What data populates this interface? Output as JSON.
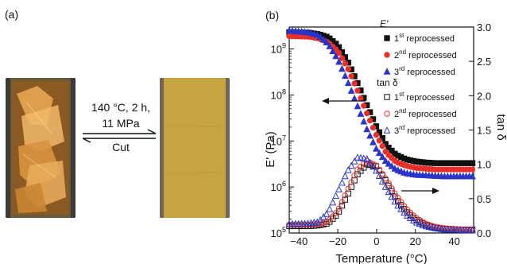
{
  "panel_a": {
    "label": "(a)",
    "conditions_line1": "140 °C, 2 h,",
    "conditions_line2": "11 MPa",
    "reverse_label": "Cut",
    "images": [
      "cut-film-pieces-photo",
      "reprocessed-film-photo"
    ]
  },
  "chart_data": {
    "type": "scatter",
    "panel_label": "(b)",
    "xlabel": "Temperature (°C)",
    "ylabel_left": "E' (Pa)",
    "ylabel_right": "tan δ",
    "xlim": [
      -45,
      50
    ],
    "ylim_left": [
      100000,
      3000000000
    ],
    "yscale_left": "log",
    "ylim_right": [
      0.0,
      3.0
    ],
    "x_ticks": [
      "-40",
      "-20",
      "0",
      "20",
      "40"
    ],
    "y_left_ticks": [
      "10^5",
      "10^6",
      "10^7",
      "10^8",
      "10^9"
    ],
    "y_right_ticks": [
      "0.0",
      "0.5",
      "1.0",
      "1.5",
      "2.0",
      "2.5",
      "3.0"
    ],
    "legend_position": "top-right",
    "legend_group_storage": "E'",
    "legend_group_tan": "tan δ",
    "colors": {
      "first": "#111111",
      "second": "#e8302a",
      "third": "#2a35c8"
    },
    "series": [
      {
        "name": "1st reprocessed",
        "group": "E'",
        "marker": "filled-square",
        "color": "#111111",
        "x": [
          -45,
          -35,
          -30,
          -25,
          -20,
          -15,
          -10,
          -5,
          0,
          5,
          10,
          15,
          20,
          25,
          30,
          35,
          40,
          45,
          50
        ],
        "values": [
          2300000000.0,
          2250000000.0,
          2100000000.0,
          1800000000.0,
          1200000000.0,
          550000000.0,
          190000000.0,
          60000000.0,
          20000000.0,
          8000000.0,
          5000000.0,
          4000000.0,
          3600000.0,
          3400000.0,
          3300000.0,
          3300000.0,
          3300000.0,
          3300000.0,
          3300000.0
        ]
      },
      {
        "name": "2nd reprocessed",
        "group": "E'",
        "marker": "filled-circle",
        "color": "#e8302a",
        "x": [
          -45,
          -35,
          -30,
          -25,
          -20,
          -15,
          -10,
          -5,
          0,
          5,
          10,
          15,
          20,
          25,
          30,
          35,
          40,
          45,
          50
        ],
        "values": [
          1900000000.0,
          1850000000.0,
          1700000000.0,
          1400000000.0,
          900000000.0,
          400000000.0,
          130000000.0,
          40000000.0,
          13000000.0,
          5500000.0,
          3500000.0,
          2900000.0,
          2600000.0,
          2500000.0,
          2400000.0,
          2400000.0,
          2400000.0,
          2400000.0,
          2400000.0
        ]
      },
      {
        "name": "3rd reprocessed",
        "group": "E'",
        "marker": "filled-triangle",
        "color": "#2a35c8",
        "x": [
          -45,
          -35,
          -30,
          -25,
          -20,
          -15,
          -10,
          -5,
          0,
          5,
          10,
          15,
          20,
          25,
          30,
          35,
          40,
          45,
          50
        ],
        "values": [
          2500000000.0,
          2300000000.0,
          2000000000.0,
          1300000000.0,
          600000000.0,
          200000000.0,
          60000000.0,
          18000000.0,
          6500000.0,
          3500000.0,
          2400000.0,
          2000000.0,
          1850000.0,
          1800000.0,
          1750000.0,
          1700000.0,
          1700000.0,
          1700000.0,
          1700000.0
        ]
      },
      {
        "name": "1st reprocessed",
        "group": "tan δ",
        "marker": "open-square",
        "color": "#111111",
        "x": [
          -45,
          -35,
          -30,
          -25,
          -20,
          -15,
          -10,
          -5,
          0,
          5,
          10,
          15,
          20,
          25,
          30,
          35,
          40,
          45,
          50
        ],
        "values": [
          0.1,
          0.1,
          0.11,
          0.14,
          0.28,
          0.55,
          0.85,
          1.0,
          0.97,
          0.75,
          0.5,
          0.32,
          0.2,
          0.12,
          0.08,
          0.06,
          0.05,
          0.05,
          0.05
        ]
      },
      {
        "name": "2nd reprocessed",
        "group": "tan δ",
        "marker": "open-circle",
        "color": "#e8302a",
        "x": [
          -45,
          -35,
          -30,
          -25,
          -20,
          -15,
          -10,
          -5,
          0,
          5,
          10,
          15,
          20,
          25,
          30,
          35,
          40,
          45,
          50
        ],
        "values": [
          0.12,
          0.12,
          0.13,
          0.17,
          0.32,
          0.62,
          0.92,
          1.05,
          0.98,
          0.78,
          0.55,
          0.36,
          0.23,
          0.14,
          0.09,
          0.07,
          0.06,
          0.05,
          0.05
        ]
      },
      {
        "name": "3rd reprocessed",
        "group": "tan δ",
        "marker": "open-triangle",
        "color": "#2a35c8",
        "x": [
          -45,
          -35,
          -30,
          -25,
          -20,
          -15,
          -10,
          -5,
          0,
          5,
          10,
          15,
          20,
          25,
          30,
          35,
          40,
          45,
          50
        ],
        "values": [
          0.13,
          0.14,
          0.16,
          0.3,
          0.6,
          0.9,
          1.1,
          1.08,
          0.9,
          0.65,
          0.43,
          0.27,
          0.16,
          0.1,
          0.07,
          0.05,
          0.05,
          0.04,
          0.04
        ]
      }
    ]
  }
}
